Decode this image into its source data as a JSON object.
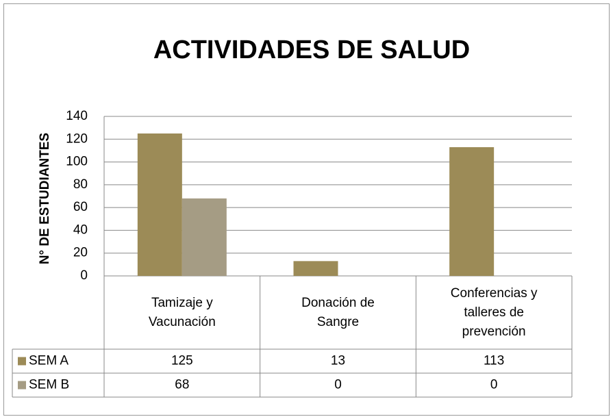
{
  "chart_data": {
    "type": "bar",
    "title": "ACTIVIDADES DE SALUD",
    "y_label": "N° DE ESTUDIANTES",
    "categories": [
      "Tamizaje y Vacunación",
      "Donación de Sangre",
      "Conferencias y talleres de prevención"
    ],
    "series": [
      {
        "name": "SEM A",
        "color": "#9c8b57",
        "values": [
          125,
          13,
          113
        ]
      },
      {
        "name": "SEM B",
        "color": "#a59c84",
        "values": [
          68,
          0,
          0
        ]
      }
    ],
    "ylim": [
      0,
      140
    ],
    "yticks": [
      0,
      20,
      40,
      60,
      80,
      100,
      120,
      140
    ],
    "grid": true,
    "data_table": true
  }
}
